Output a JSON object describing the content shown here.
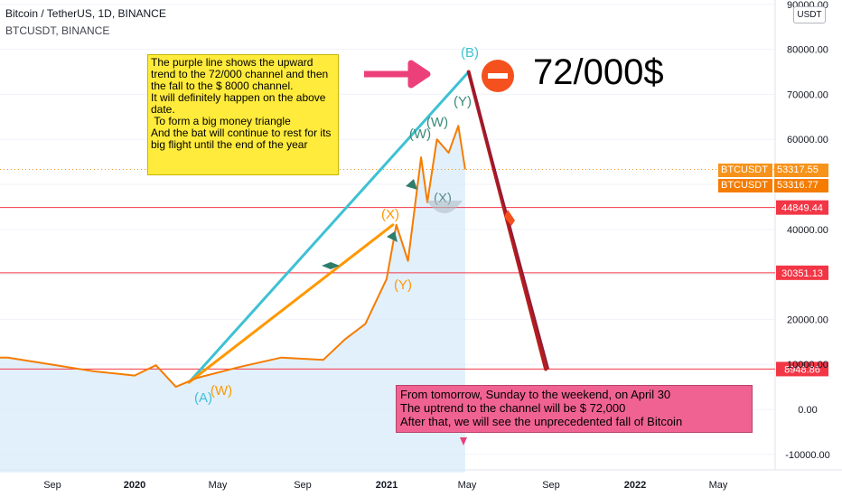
{
  "header": {
    "symbol_title": "Bitcoin / TetherUS, 1D, BINANCE",
    "symbol_sub": "BTCUSDT, BINANCE"
  },
  "currency_button": "USDT",
  "big_text": "72/000$",
  "note_yellow": "The purple line shows the upward trend to the 72/000 channel and then the fall to the $ 8000 channel.\nIt will definitely happen on the above date.\n To form a big money triangle\nAnd the bat will continue to rest for its big flight until the end of the year",
  "note_pink": "From tomorrow, Sunday to the weekend, on April 30\nThe uptrend to the channel will be $ 72,000\nAfter that, we will see the unprecedented fall of Bitcoin",
  "price_tags": [
    {
      "label": "BTCUSDT",
      "value": "53317.55",
      "color": "#f7931a"
    },
    {
      "label": "BTCUSDT",
      "value": "53316.77",
      "color": "#f57c00"
    }
  ],
  "level_tags": [
    {
      "value": "44849.44",
      "price": 44849.44
    },
    {
      "value": "30351.13",
      "price": 30351.13
    },
    {
      "value": "8948.86",
      "price": 8948.86
    }
  ],
  "wave_labels": [
    "(B)",
    "(X)",
    "(Y)",
    "(X)",
    "(W)",
    "(W)",
    "(Y)",
    "(A)",
    "(W)"
  ],
  "colors": {
    "price_line": "#f57c00",
    "cyan_line": "#3ec1d3",
    "orange_line": "#ff9800",
    "fall_line": "#b71c1c",
    "level_line": "#f23645",
    "area_fill": "#d6e9fb"
  },
  "chart_data": {
    "type": "line",
    "title": "Bitcoin / TetherUS, 1D, BINANCE",
    "xlabel": "",
    "ylabel": "",
    "ylim": [
      -14000,
      90000
    ],
    "y_ticks": [
      "90000.00",
      "80000.00",
      "70000.00",
      "60000.00",
      "40000.00",
      "20000.00",
      "10000.00",
      "0.00",
      "-10000.00"
    ],
    "x_ticks": [
      "Sep",
      "2020",
      "May",
      "Sep",
      "2021",
      "May",
      "Sep",
      "2022",
      "May"
    ],
    "series": [
      {
        "x": [
          "2019-07",
          "2019-09",
          "2019-11",
          "2020-01",
          "2020-02",
          "2020-03",
          "2020-04",
          "2020-06",
          "2020-08",
          "2020-10",
          "2020-11",
          "2020-12",
          "2021-01",
          "2021-01-15",
          "2021-02",
          "2021-02-20",
          "2021-03",
          "2021-03-15",
          "2021-04",
          "2021-04-15",
          "2021-04-25"
        ],
        "values": [
          11500,
          10000,
          8500,
          7500,
          9800,
          5000,
          7000,
          9400,
          11500,
          11000,
          15500,
          19000,
          29000,
          41000,
          33000,
          56000,
          46000,
          60000,
          57000,
          63000,
          53317
        ]
      }
    ],
    "trend_lines": [
      {
        "name": "cyan",
        "from": [
          "2020-03-20",
          6000
        ],
        "to": [
          "2021-04-30",
          75000
        ]
      },
      {
        "name": "orange",
        "from": [
          "2020-03-20",
          6000
        ],
        "to": [
          "2021-01-10",
          41000
        ]
      },
      {
        "name": "fall",
        "from": [
          "2021-04-30",
          75000
        ],
        "to": [
          "2021-08-20",
          8948.86
        ]
      }
    ]
  }
}
